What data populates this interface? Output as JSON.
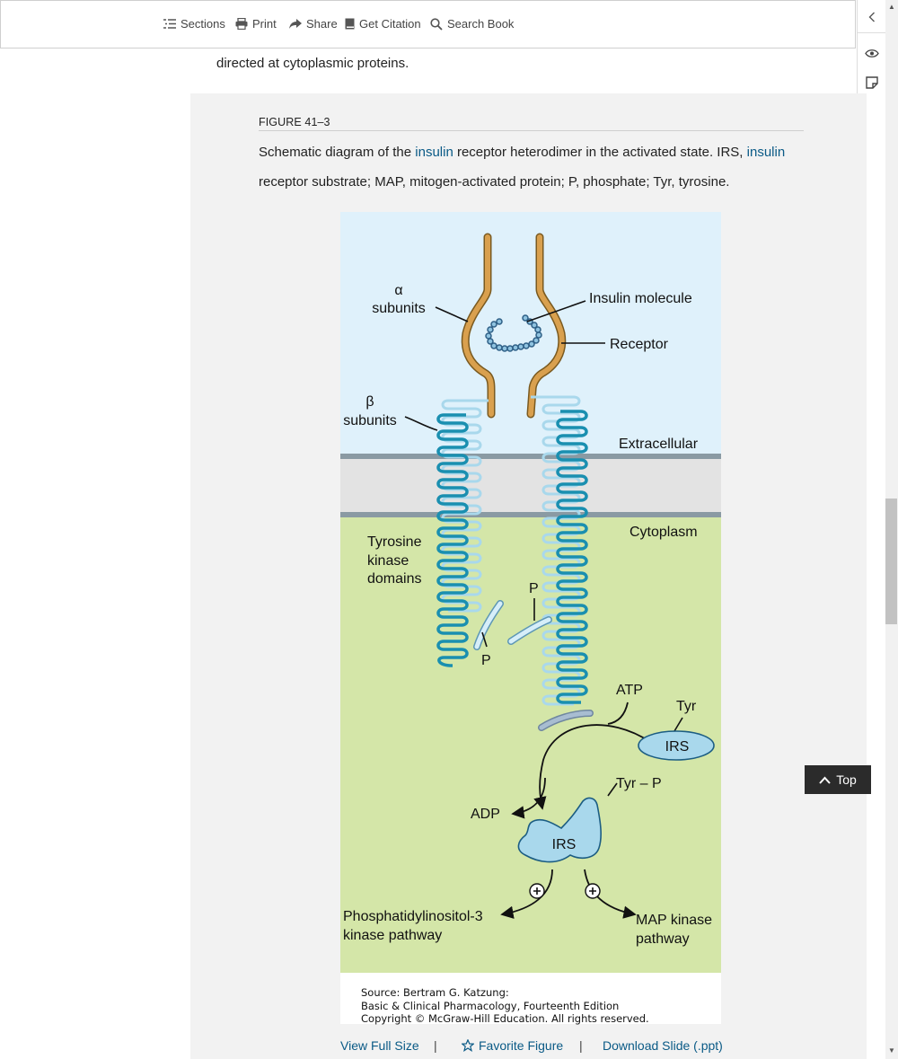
{
  "toolbar": {
    "sections": "Sections",
    "print": "Print",
    "share": "Share",
    "citation": "Get Citation",
    "search": "Search Book"
  },
  "body": {
    "text": "directed at cytoplasmic proteins."
  },
  "figure": {
    "label": "FIGURE 41–3",
    "caption": {
      "part1": "Schematic diagram of the ",
      "link1": "insulin",
      "part2": " receptor heterodimer in the activated state. IRS, ",
      "link2": "insulin",
      "part3": " receptor substrate; MAP, mitogen-activated protein; P, phosphate; Tyr, tyrosine."
    },
    "diagram_labels": {
      "alpha": "α",
      "alpha_subunits": "subunits",
      "insulin_molecule": "Insulin molecule",
      "receptor": "Receptor",
      "beta": "β",
      "beta_subunits": "subunits",
      "extracellular": "Extracellular",
      "cytoplasm": "Cytoplasm",
      "tk1": "Tyrosine",
      "tk2": "kinase",
      "tk3": "domains",
      "p_top": "P",
      "p_bottom": "P",
      "atp": "ATP",
      "tyr": "Tyr",
      "irs_top": "IRS",
      "tyr_p": "Tyr – P",
      "adp": "ADP",
      "irs_bottom": "IRS",
      "pi3k1": "Phosphatidylinositol-3",
      "pi3k2": "kinase pathway",
      "map1": "MAP kinase",
      "map2": "pathway"
    },
    "source": {
      "line1": "Source: Bertram G. Katzung:",
      "line2": "Basic & Clinical Pharmacology, Fourteenth Edition",
      "line3": "Copyright © McGraw-Hill Education. All rights reserved."
    },
    "actions": {
      "view_full": "View Full Size",
      "favorite": "Favorite Figure",
      "download": "Download Slide (.ppt)",
      "separator": "|"
    }
  },
  "top_button": "Top",
  "colors": {
    "link": "#0a5a86",
    "extracellular_bg": "#dff1fb",
    "cytoplasm_bg": "#d4e6a8",
    "membrane": "#e3e3e3",
    "receptor_alpha": "#d9a04e",
    "beta_dark": "#1a8fb0",
    "beta_light": "#a9d8ec"
  }
}
